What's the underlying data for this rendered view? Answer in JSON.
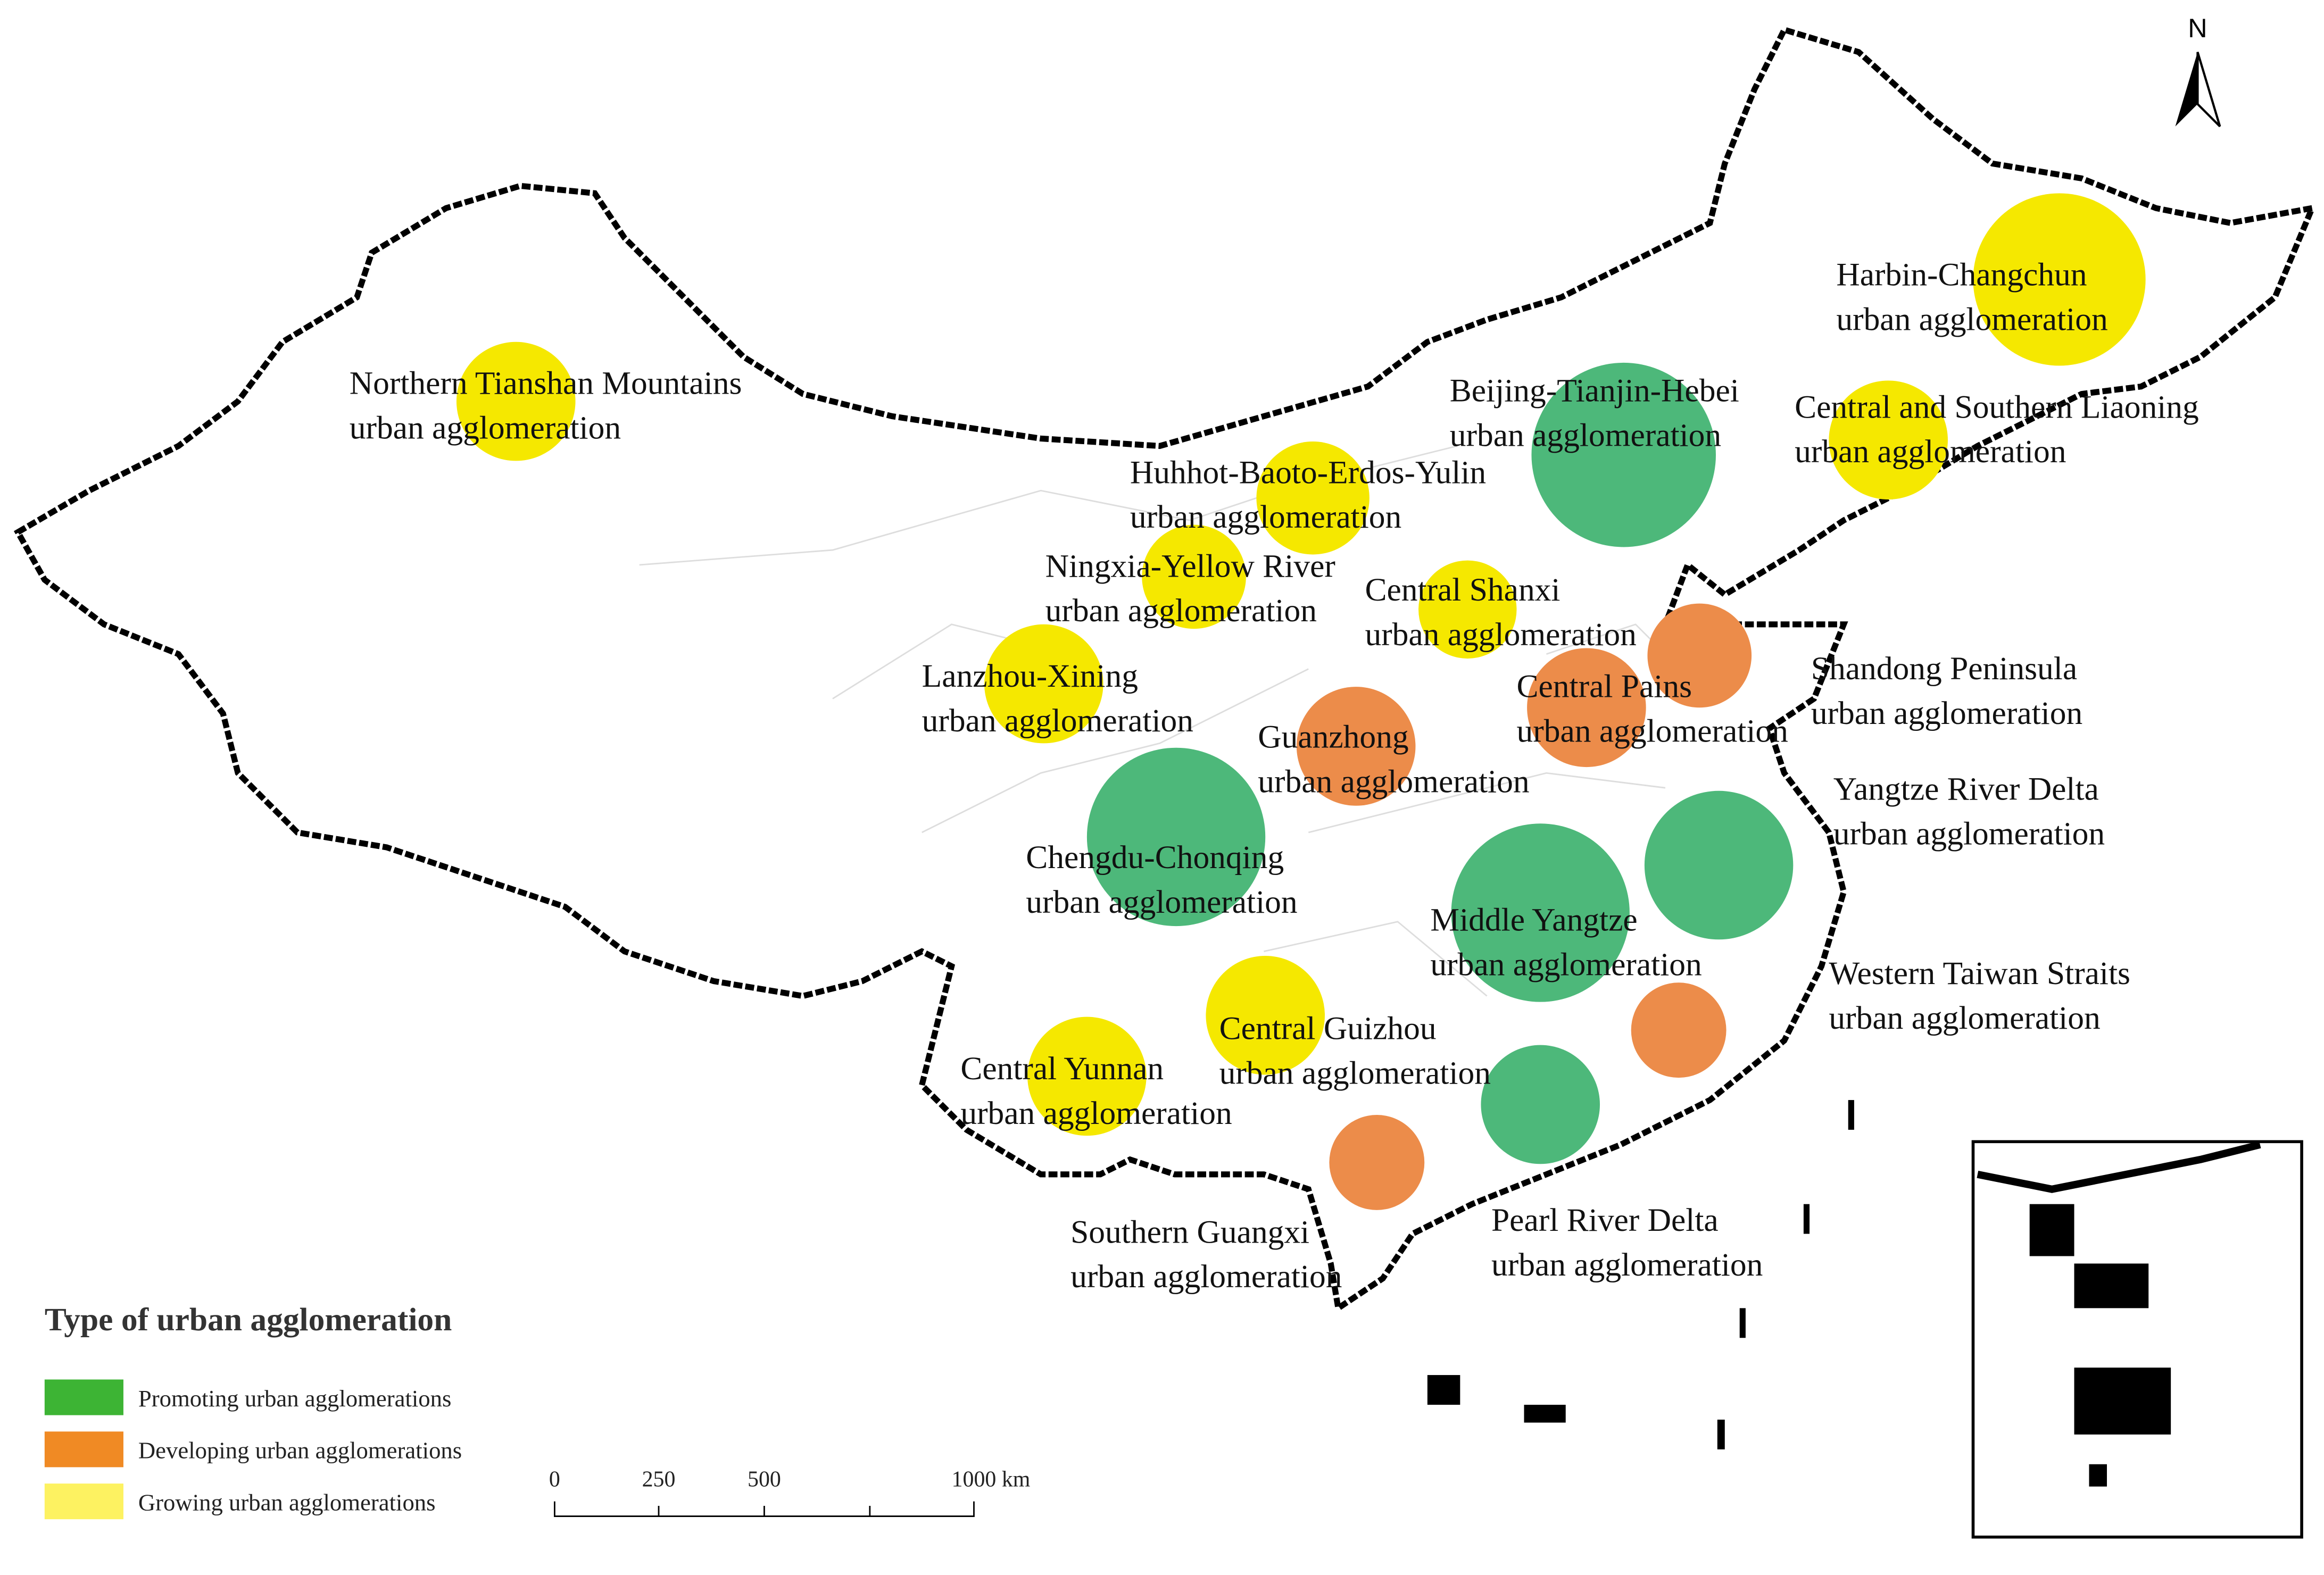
{
  "north": "N",
  "legend": {
    "title": "Type of urban agglomeration",
    "items": [
      {
        "label": "Promoting urban agglomerations",
        "color": "#3db434"
      },
      {
        "label": "Developing urban agglomerations",
        "color": "#f08a24"
      },
      {
        "label": "Growing urban agglomerations",
        "color": "#fdf261"
      }
    ]
  },
  "scale_bar": {
    "labels": [
      "0",
      "250",
      "500",
      "1000 km"
    ]
  },
  "agglomerations": [
    {
      "name": "Northern Tianshan Mountains",
      "suffix": "urban agglomeration",
      "color": "#f5e800"
    },
    {
      "name": "Harbin-Changchun",
      "suffix": "urban agglomeration",
      "color": "#f5e800"
    },
    {
      "name": "Beijing-Tianjin-Hebei",
      "suffix": "urban agglomeration",
      "color": "#4db87a"
    },
    {
      "name": "Central and Southern Liaoning",
      "suffix": "urban agglomeration",
      "color": "#f5e800"
    },
    {
      "name": "Huhhot-Baoto-Erdos-Yulin",
      "suffix": "urban agglomeration",
      "color": "#f5e800"
    },
    {
      "name": "Ningxia-Yellow River",
      "suffix": "urban agglomeration",
      "color": "#f5e800"
    },
    {
      "name": "Central Shanxi",
      "suffix": "urban agglomeration",
      "color": "#f5e800"
    },
    {
      "name": "Shandong Peninsula",
      "suffix": "urban agglomeration",
      "color": "#ec8c4a"
    },
    {
      "name": "Central Pains",
      "suffix": "urban agglomeration",
      "color": "#ec8c4a"
    },
    {
      "name": "Lanzhou-Xining",
      "suffix": "urban agglomeration",
      "color": "#f5e800"
    },
    {
      "name": "Guanzhong",
      "suffix": "urban agglomeration",
      "color": "#ec8c4a"
    },
    {
      "name": "Yangtze River Delta",
      "suffix": "urban agglomeration",
      "color": "#4db87a"
    },
    {
      "name": "Chengdu-Chonqing",
      "suffix": "urban agglomeration",
      "color": "#4db87a"
    },
    {
      "name": "Middle Yangtze",
      "suffix": "urban agglomeration",
      "color": "#4db87a"
    },
    {
      "name": "Western Taiwan Straits",
      "suffix": "urban agglomeration",
      "color": "#ec8c4a"
    },
    {
      "name": "Central Guizhou",
      "suffix": "urban agglomeration",
      "color": "#f5e800"
    },
    {
      "name": "Central Yunnan",
      "suffix": "urban agglomeration",
      "color": "#f5e800"
    },
    {
      "name": "Pearl River Delta",
      "suffix": "urban agglomeration",
      "color": "#4db87a"
    },
    {
      "name": "Southern Guangxi",
      "suffix": "urban agglomeration",
      "color": "#ec8c4a"
    }
  ]
}
